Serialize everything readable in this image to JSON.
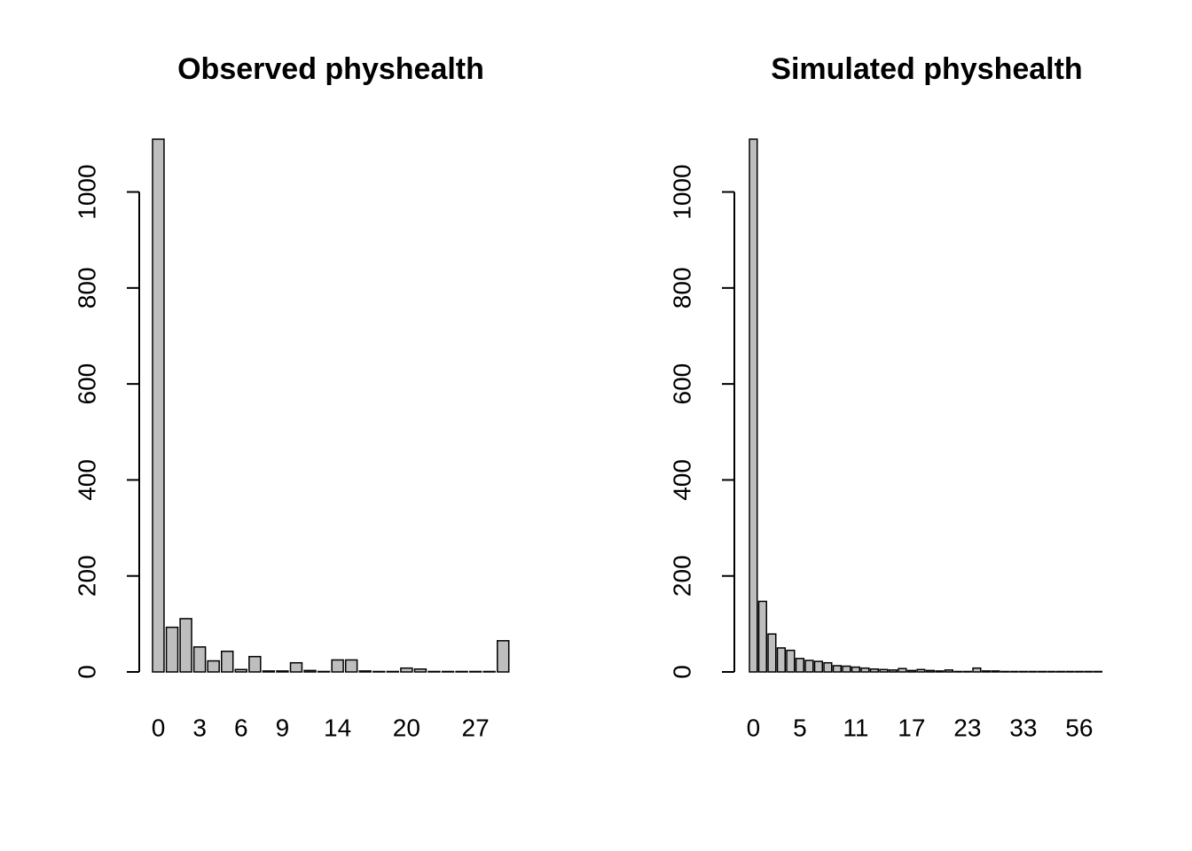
{
  "chart_data": [
    {
      "type": "bar",
      "title": "Observed physhealth",
      "categories": [
        "0",
        null,
        null,
        "3",
        null,
        null,
        "6",
        null,
        null,
        "9",
        null,
        null,
        null,
        "14",
        null,
        null,
        null,
        null,
        "20",
        null,
        null,
        null,
        null,
        "27",
        null,
        null
      ],
      "values": [
        1110,
        93,
        111,
        52,
        23,
        43,
        5,
        32,
        2,
        2,
        19,
        3,
        1,
        25,
        25,
        2,
        1,
        1,
        8,
        6,
        1,
        1,
        1,
        1,
        1,
        65
      ],
      "color": "#bebebe",
      "ylim": [
        0,
        1110
      ],
      "yticks": [
        0,
        200,
        400,
        600,
        800,
        1000
      ]
    },
    {
      "type": "bar",
      "title": "Simulated physhealth",
      "categories": [
        "0",
        null,
        null,
        null,
        null,
        "5",
        null,
        null,
        null,
        null,
        null,
        "11",
        null,
        null,
        null,
        null,
        null,
        "17",
        null,
        null,
        null,
        null,
        null,
        "23",
        null,
        null,
        null,
        null,
        null,
        "33",
        null,
        null,
        null,
        null,
        null,
        "56",
        null,
        null
      ],
      "values": [
        1110,
        147,
        79,
        50,
        45,
        28,
        24,
        22,
        19,
        13,
        12,
        10,
        8,
        6,
        5,
        4,
        7,
        3,
        5,
        3,
        2,
        4,
        1,
        1,
        8,
        2,
        2,
        1,
        1,
        1,
        1,
        1,
        1,
        1,
        1,
        1,
        1,
        1
      ],
      "color": "#bebebe",
      "ylim": [
        0,
        1110
      ],
      "yticks": [
        0,
        200,
        400,
        600,
        800,
        1000
      ]
    }
  ]
}
